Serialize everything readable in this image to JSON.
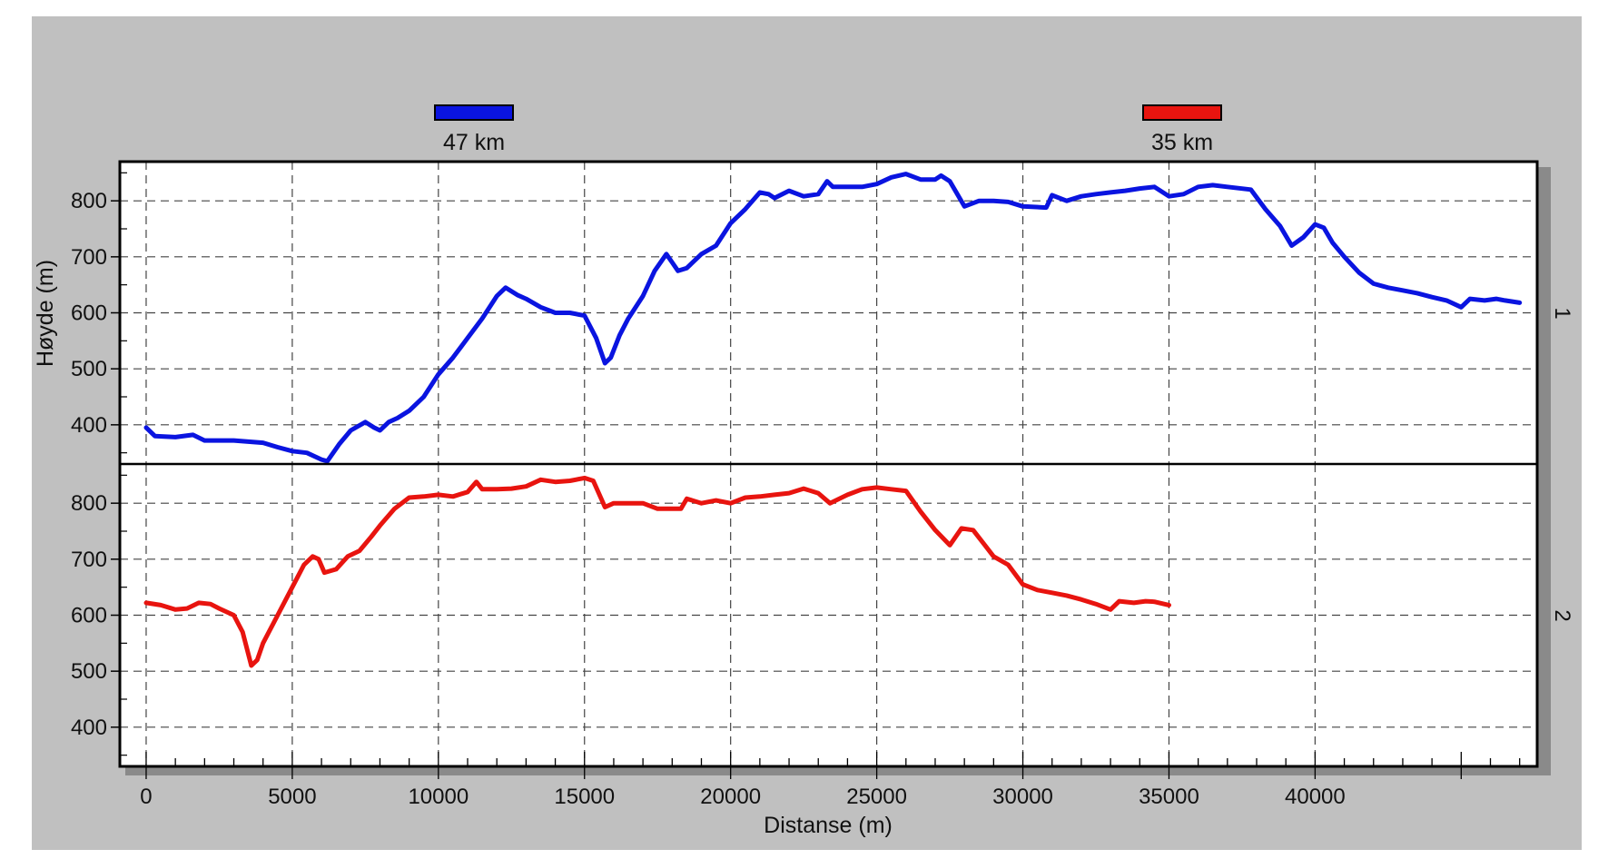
{
  "chart_data": {
    "type": "line",
    "xlabel": "Distanse (m)",
    "ylabel": "Høyde (m)",
    "xlim": [
      -900,
      47600
    ],
    "x_ticks": [
      0,
      5000,
      10000,
      15000,
      20000,
      25000,
      30000,
      35000,
      40000
    ],
    "x_tick_labels": [
      "0",
      "5000",
      "10000",
      "15000",
      "20000",
      "25000",
      "30000",
      "35000",
      "40000"
    ],
    "grid": true,
    "legend_position": "top",
    "colors": {
      "background": "#c0c0c0",
      "plot": "#ffffff"
    },
    "series": [
      {
        "name": "47 km",
        "panel_label": "1",
        "color": "#0a14e0",
        "ylim": [
          330,
          870
        ],
        "y_ticks": [
          400,
          500,
          600,
          700,
          800
        ],
        "points": [
          [
            0,
            395
          ],
          [
            300,
            380
          ],
          [
            1000,
            378
          ],
          [
            1600,
            382
          ],
          [
            2000,
            372
          ],
          [
            3000,
            372
          ],
          [
            4000,
            368
          ],
          [
            4500,
            360
          ],
          [
            5000,
            353
          ],
          [
            5500,
            350
          ],
          [
            6000,
            338
          ],
          [
            6200,
            335
          ],
          [
            6600,
            365
          ],
          [
            7000,
            390
          ],
          [
            7500,
            405
          ],
          [
            7800,
            395
          ],
          [
            8000,
            390
          ],
          [
            8300,
            405
          ],
          [
            8600,
            412
          ],
          [
            9000,
            425
          ],
          [
            9500,
            450
          ],
          [
            10000,
            490
          ],
          [
            10500,
            520
          ],
          [
            11000,
            555
          ],
          [
            11500,
            590
          ],
          [
            12000,
            630
          ],
          [
            12300,
            645
          ],
          [
            12700,
            632
          ],
          [
            13000,
            625
          ],
          [
            13500,
            610
          ],
          [
            14000,
            600
          ],
          [
            14500,
            600
          ],
          [
            15000,
            595
          ],
          [
            15400,
            555
          ],
          [
            15700,
            510
          ],
          [
            15900,
            520
          ],
          [
            16200,
            560
          ],
          [
            16500,
            590
          ],
          [
            17000,
            630
          ],
          [
            17400,
            675
          ],
          [
            17800,
            705
          ],
          [
            18000,
            690
          ],
          [
            18200,
            675
          ],
          [
            18500,
            680
          ],
          [
            19000,
            705
          ],
          [
            19500,
            720
          ],
          [
            20000,
            760
          ],
          [
            20500,
            785
          ],
          [
            21000,
            815
          ],
          [
            21300,
            812
          ],
          [
            21500,
            805
          ],
          [
            22000,
            818
          ],
          [
            22500,
            808
          ],
          [
            23000,
            812
          ],
          [
            23300,
            835
          ],
          [
            23500,
            825
          ],
          [
            24000,
            825
          ],
          [
            24500,
            825
          ],
          [
            25000,
            830
          ],
          [
            25500,
            842
          ],
          [
            26000,
            848
          ],
          [
            26500,
            838
          ],
          [
            27000,
            838
          ],
          [
            27200,
            845
          ],
          [
            27500,
            835
          ],
          [
            28000,
            790
          ],
          [
            28500,
            800
          ],
          [
            29000,
            800
          ],
          [
            29500,
            798
          ],
          [
            30000,
            790
          ],
          [
            30800,
            788
          ],
          [
            31000,
            810
          ],
          [
            31500,
            800
          ],
          [
            32000,
            808
          ],
          [
            32500,
            812
          ],
          [
            33000,
            815
          ],
          [
            33500,
            818
          ],
          [
            34000,
            822
          ],
          [
            34500,
            825
          ],
          [
            35000,
            808
          ],
          [
            35500,
            812
          ],
          [
            36000,
            825
          ],
          [
            36500,
            828
          ],
          [
            37000,
            825
          ],
          [
            37800,
            820
          ],
          [
            38300,
            785
          ],
          [
            38800,
            755
          ],
          [
            39200,
            720
          ],
          [
            39600,
            735
          ],
          [
            40000,
            758
          ],
          [
            40300,
            752
          ],
          [
            40600,
            725
          ],
          [
            41000,
            700
          ],
          [
            41500,
            672
          ],
          [
            42000,
            652
          ],
          [
            42500,
            645
          ],
          [
            43000,
            640
          ],
          [
            43500,
            635
          ],
          [
            44000,
            628
          ],
          [
            44500,
            622
          ],
          [
            45000,
            610
          ],
          [
            45300,
            625
          ],
          [
            45800,
            622
          ],
          [
            46200,
            625
          ],
          [
            46500,
            622
          ],
          [
            47000,
            618
          ]
        ]
      },
      {
        "name": "35 km",
        "panel_label": "2",
        "color": "#e8140f",
        "ylim": [
          330,
          870
        ],
        "y_ticks": [
          400,
          500,
          600,
          700,
          800
        ],
        "points": [
          [
            0,
            622
          ],
          [
            500,
            618
          ],
          [
            1000,
            610
          ],
          [
            1400,
            612
          ],
          [
            1800,
            622
          ],
          [
            2200,
            620
          ],
          [
            2500,
            612
          ],
          [
            3000,
            600
          ],
          [
            3300,
            570
          ],
          [
            3600,
            510
          ],
          [
            3800,
            520
          ],
          [
            4000,
            550
          ],
          [
            4500,
            600
          ],
          [
            5000,
            650
          ],
          [
            5400,
            690
          ],
          [
            5700,
            705
          ],
          [
            5900,
            700
          ],
          [
            6100,
            676
          ],
          [
            6500,
            682
          ],
          [
            6900,
            705
          ],
          [
            7300,
            715
          ],
          [
            7700,
            740
          ],
          [
            8000,
            760
          ],
          [
            8500,
            790
          ],
          [
            9000,
            810
          ],
          [
            9500,
            812
          ],
          [
            10000,
            815
          ],
          [
            10500,
            812
          ],
          [
            11000,
            820
          ],
          [
            11300,
            838
          ],
          [
            11500,
            825
          ],
          [
            12000,
            825
          ],
          [
            12500,
            826
          ],
          [
            13000,
            830
          ],
          [
            13500,
            842
          ],
          [
            14000,
            838
          ],
          [
            14500,
            840
          ],
          [
            15000,
            845
          ],
          [
            15300,
            840
          ],
          [
            15700,
            793
          ],
          [
            16000,
            800
          ],
          [
            16500,
            800
          ],
          [
            17000,
            800
          ],
          [
            17500,
            790
          ],
          [
            18000,
            790
          ],
          [
            18300,
            790
          ],
          [
            18500,
            808
          ],
          [
            19000,
            800
          ],
          [
            19500,
            805
          ],
          [
            20000,
            800
          ],
          [
            20500,
            810
          ],
          [
            21000,
            812
          ],
          [
            21500,
            815
          ],
          [
            22000,
            818
          ],
          [
            22500,
            826
          ],
          [
            23000,
            818
          ],
          [
            23400,
            800
          ],
          [
            24000,
            815
          ],
          [
            24500,
            825
          ],
          [
            25000,
            828
          ],
          [
            25500,
            825
          ],
          [
            26000,
            822
          ],
          [
            26500,
            785
          ],
          [
            27000,
            752
          ],
          [
            27500,
            725
          ],
          [
            27900,
            755
          ],
          [
            28300,
            752
          ],
          [
            28700,
            725
          ],
          [
            29000,
            705
          ],
          [
            29500,
            690
          ],
          [
            30000,
            655
          ],
          [
            30500,
            645
          ],
          [
            31000,
            640
          ],
          [
            31500,
            635
          ],
          [
            32000,
            628
          ],
          [
            32500,
            620
          ],
          [
            33000,
            610
          ],
          [
            33300,
            625
          ],
          [
            33800,
            622
          ],
          [
            34200,
            625
          ],
          [
            34500,
            624
          ],
          [
            35000,
            618
          ]
        ]
      }
    ]
  }
}
